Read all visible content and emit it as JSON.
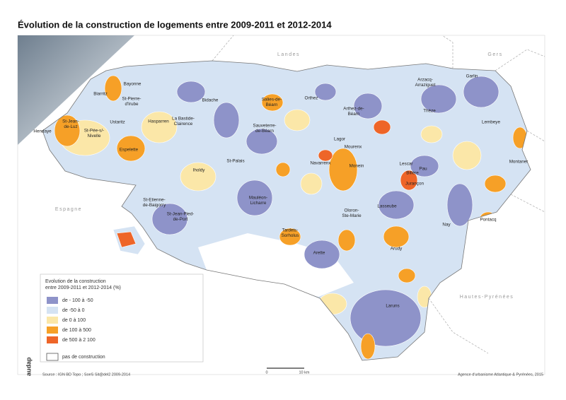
{
  "title": "Évolution de la construction de logements entre 2009-2011 et 2012-2014",
  "regions": [
    "Landes",
    "Gers",
    "Espagne",
    "Hautes-Pyrénées"
  ],
  "towns": [
    {
      "lines": [
        "Bayonne"
      ]
    },
    {
      "lines": [
        "Biarritz"
      ]
    },
    {
      "lines": [
        "St-Pierre-",
        "d'Irube"
      ]
    },
    {
      "lines": [
        "Ustaritz"
      ]
    },
    {
      "lines": [
        "St-Jean-",
        "de-Luz"
      ]
    },
    {
      "lines": [
        "Hendaye"
      ]
    },
    {
      "lines": [
        "St-Pée-s/-",
        "Nivelle"
      ]
    },
    {
      "lines": [
        "Hasparren"
      ]
    },
    {
      "lines": [
        "La Bastide-",
        "Clairence"
      ]
    },
    {
      "lines": [
        "Bidache"
      ]
    },
    {
      "lines": [
        "Salies-de-",
        "Béarn"
      ]
    },
    {
      "lines": [
        "Orthez"
      ]
    },
    {
      "lines": [
        "Sauveterre-",
        "de-Béarn"
      ]
    },
    {
      "lines": [
        "Arthez-de-",
        "Béarn"
      ]
    },
    {
      "lines": [
        "Arzacq-",
        "Arraziguet"
      ]
    },
    {
      "lines": [
        "Garlin"
      ]
    },
    {
      "lines": [
        "Thèze"
      ]
    },
    {
      "lines": [
        "Lembeye"
      ]
    },
    {
      "lines": [
        "Espelette"
      ]
    },
    {
      "lines": [
        "Iholdy"
      ]
    },
    {
      "lines": [
        "St-Palais"
      ]
    },
    {
      "lines": [
        "Lagor"
      ]
    },
    {
      "lines": [
        "Mourenx"
      ]
    },
    {
      "lines": [
        "Navarrenx"
      ]
    },
    {
      "lines": [
        "Monein"
      ]
    },
    {
      "lines": [
        "Lescar"
      ]
    },
    {
      "lines": [
        "Billère"
      ]
    },
    {
      "lines": [
        "Pau"
      ]
    },
    {
      "lines": [
        "Jurançon"
      ]
    },
    {
      "lines": [
        "Montaner"
      ]
    },
    {
      "lines": [
        "Mauléon-",
        "Licharre"
      ]
    },
    {
      "lines": [
        "St-Etienne-",
        "de-Baigorry"
      ]
    },
    {
      "lines": [
        "St-Jean-Pied-",
        "de-Port"
      ]
    },
    {
      "lines": [
        "Lasseube"
      ]
    },
    {
      "lines": [
        "Oloron-",
        "Ste-Marie"
      ]
    },
    {
      "lines": [
        "Nay"
      ]
    },
    {
      "lines": [
        "Pontacq"
      ]
    },
    {
      "lines": [
        "Tardets-",
        "Sorholus"
      ]
    },
    {
      "lines": [
        "Arudy"
      ]
    },
    {
      "lines": [
        "Arette"
      ]
    },
    {
      "lines": [
        "Laruns"
      ]
    }
  ],
  "legend": {
    "title": [
      "Evolution de la construction",
      "entre 2009-2011 et 2012-2014 (%)"
    ],
    "items": [
      {
        "label": "de - 100 à -50",
        "color": "#8e93c9"
      },
      {
        "label": "de -50 à 0",
        "color": "#d5e3f3"
      },
      {
        "label": "de 0 à 100",
        "color": "#fbe7a8"
      },
      {
        "label": "de 100 à 500",
        "color": "#f6a027"
      },
      {
        "label": "de 500 à 2 100",
        "color": "#ee6528"
      },
      {
        "label": "pas de construction",
        "color": "#ffffff"
      }
    ]
  },
  "scale": {
    "start": "0",
    "end": "10 km"
  },
  "source": "Source : IGN BD Topo ; SoeS Sit@del2 2009-2014",
  "credit": "Agence d'urbanisme Atlantique & Pyrénées, 2015",
  "logo": "audap"
}
